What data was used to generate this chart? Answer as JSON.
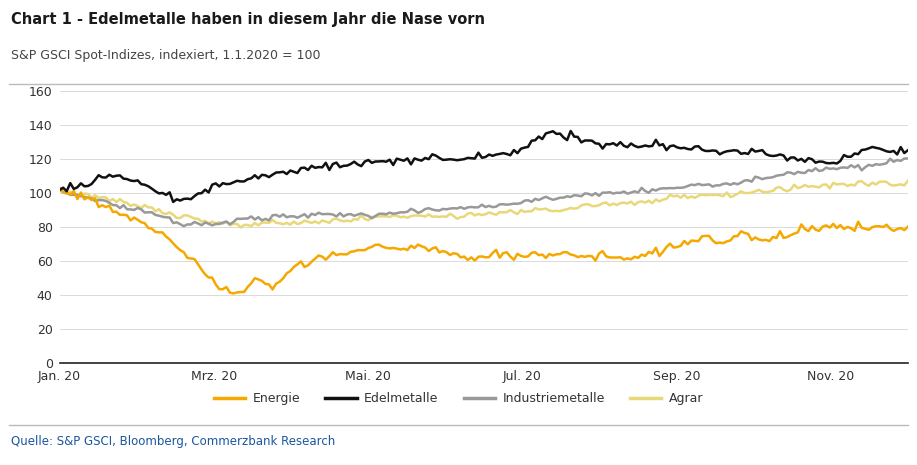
{
  "title": "Chart 1 - Edelmetalle haben in diesem Jahr die Nase vorn",
  "subtitle": "S&P GSCI Spot-Indizes, indexiert, 1.1.2020 = 100",
  "source": "Quelle: S&P GSCI, Bloomberg, Commerzbank Research",
  "title_color": "#1a1a1a",
  "subtitle_color": "#444444",
  "source_color": "#1a56a0",
  "ylim": [
    0,
    160
  ],
  "yticks": [
    0,
    20,
    40,
    60,
    80,
    100,
    120,
    140,
    160
  ],
  "xtick_labels": [
    "Jan. 20",
    "Mrz. 20",
    "Mai. 20",
    "Jul. 20",
    "Sep. 20",
    "Nov. 20"
  ],
  "legend_labels": [
    "Energie",
    "Edelmetalle",
    "Industriemetalle",
    "Agrar"
  ],
  "line_colors": {
    "Energie": "#f5a800",
    "Edelmetalle": "#111111",
    "Industriemetalle": "#999999",
    "Agrar": "#e8d878"
  },
  "background_color": "#ffffff",
  "grid_color": "#cccccc",
  "energie": [
    101,
    101,
    101,
    100,
    100,
    99,
    98,
    97,
    97,
    96,
    95,
    94,
    93,
    92,
    91,
    90,
    89,
    88,
    87,
    86,
    85,
    84,
    83,
    82,
    81,
    80,
    79,
    78,
    77,
    76,
    75,
    73,
    71,
    69,
    67,
    65,
    63,
    61,
    59,
    57,
    55,
    53,
    51,
    48,
    46,
    44,
    43,
    42,
    41,
    40,
    41,
    42,
    43,
    45,
    47,
    49,
    48,
    47,
    46,
    45,
    44,
    45,
    47,
    50,
    52,
    54,
    55,
    56,
    57,
    58,
    59,
    60,
    61,
    62,
    62,
    63,
    63,
    64,
    63,
    63,
    64,
    64,
    65,
    65,
    66,
    66,
    67,
    67,
    68,
    68,
    68,
    68,
    68,
    68,
    67,
    67,
    67,
    67,
    67,
    68,
    68,
    68,
    68,
    67,
    67,
    67,
    67,
    66,
    66,
    65,
    65,
    64,
    63,
    63,
    62,
    62,
    62,
    62,
    61,
    62,
    62,
    63,
    63,
    64,
    64,
    63,
    63,
    62,
    62,
    63,
    63,
    63,
    64,
    64,
    64,
    64,
    63,
    63,
    63,
    63,
    64,
    64,
    64,
    64,
    63,
    63,
    62,
    62,
    62,
    62,
    63,
    63,
    63,
    63,
    62,
    62,
    62,
    62,
    62,
    62,
    62,
    62,
    62,
    62,
    63,
    63,
    64,
    64,
    65,
    65,
    66,
    67,
    67,
    68,
    68,
    69,
    70,
    70,
    71,
    72,
    73,
    74,
    74,
    73,
    72,
    71,
    70,
    70,
    71,
    72,
    73,
    74,
    75,
    75,
    75,
    74,
    73,
    72,
    71,
    71,
    72,
    73,
    74,
    75,
    75,
    76,
    77,
    77,
    78,
    79,
    79,
    79,
    79,
    79,
    79,
    79,
    80,
    80,
    80,
    79,
    79,
    78,
    78,
    79,
    79,
    80,
    80,
    79,
    79,
    80,
    80,
    80,
    79,
    79,
    79,
    79,
    80,
    80,
    80,
    79
  ],
  "edelmetalle": [
    102,
    103,
    103,
    104,
    104,
    104,
    105,
    105,
    105,
    106,
    107,
    108,
    109,
    110,
    110,
    110,
    110,
    109,
    109,
    108,
    108,
    107,
    107,
    106,
    105,
    104,
    103,
    102,
    101,
    100,
    99,
    98,
    97,
    96,
    95,
    95,
    96,
    97,
    98,
    99,
    100,
    101,
    102,
    103,
    104,
    104,
    105,
    105,
    106,
    106,
    106,
    107,
    107,
    108,
    108,
    109,
    109,
    110,
    110,
    111,
    111,
    112,
    112,
    112,
    113,
    113,
    113,
    113,
    114,
    114,
    114,
    115,
    115,
    115,
    116,
    116,
    116,
    117,
    117,
    117,
    116,
    116,
    116,
    117,
    117,
    117,
    117,
    118,
    118,
    118,
    118,
    118,
    118,
    118,
    118,
    119,
    119,
    119,
    119,
    119,
    119,
    119,
    120,
    120,
    120,
    120,
    120,
    120,
    120,
    120,
    120,
    120,
    120,
    120,
    120,
    121,
    121,
    121,
    121,
    122,
    122,
    122,
    122,
    122,
    122,
    122,
    122,
    123,
    124,
    125,
    126,
    127,
    128,
    130,
    131,
    132,
    133,
    134,
    135,
    136,
    136,
    135,
    134,
    133,
    133,
    132,
    131,
    130,
    130,
    130,
    130,
    129,
    129,
    128,
    128,
    128,
    128,
    128,
    128,
    128,
    128,
    128,
    128,
    128,
    127,
    127,
    127,
    127,
    127,
    127,
    127,
    127,
    127,
    127,
    127,
    127,
    126,
    126,
    126,
    126,
    126,
    125,
    125,
    124,
    124,
    124,
    124,
    124,
    124,
    124,
    124,
    124,
    124,
    124,
    124,
    124,
    124,
    124,
    124,
    123,
    123,
    122,
    122,
    121,
    121,
    120,
    120,
    120,
    120,
    120,
    120,
    120,
    120,
    119,
    119,
    118,
    118,
    117,
    117,
    118,
    119,
    120,
    121,
    122,
    123,
    124,
    124,
    125,
    125,
    126,
    126,
    125,
    125,
    125,
    125,
    125,
    125,
    125,
    125,
    125
  ],
  "industriemetalle": [
    101,
    100,
    100,
    100,
    99,
    99,
    98,
    98,
    97,
    97,
    96,
    95,
    95,
    94,
    94,
    93,
    93,
    92,
    92,
    91,
    91,
    90,
    90,
    90,
    89,
    89,
    88,
    87,
    87,
    86,
    85,
    84,
    83,
    83,
    82,
    82,
    82,
    82,
    82,
    82,
    82,
    82,
    82,
    82,
    82,
    82,
    83,
    83,
    83,
    83,
    84,
    84,
    84,
    84,
    85,
    85,
    85,
    85,
    85,
    85,
    86,
    86,
    86,
    86,
    86,
    86,
    86,
    86,
    86,
    86,
    86,
    87,
    87,
    87,
    87,
    87,
    87,
    87,
    87,
    87,
    87,
    87,
    87,
    87,
    87,
    87,
    87,
    87,
    87,
    87,
    88,
    88,
    88,
    88,
    88,
    88,
    88,
    89,
    89,
    89,
    89,
    89,
    89,
    90,
    90,
    90,
    90,
    90,
    90,
    90,
    91,
    91,
    91,
    91,
    91,
    91,
    91,
    91,
    92,
    92,
    92,
    92,
    92,
    93,
    93,
    93,
    93,
    93,
    94,
    94,
    94,
    94,
    95,
    95,
    96,
    96,
    97,
    97,
    97,
    97,
    97,
    97,
    97,
    97,
    98,
    98,
    98,
    98,
    99,
    99,
    99,
    99,
    99,
    100,
    100,
    100,
    100,
    100,
    100,
    100,
    100,
    100,
    101,
    101,
    101,
    101,
    101,
    101,
    102,
    102,
    102,
    103,
    103,
    103,
    103,
    104,
    104,
    104,
    104,
    104,
    104,
    104,
    105,
    105,
    105,
    105,
    105,
    105,
    105,
    105,
    106,
    106,
    106,
    107,
    107,
    107,
    108,
    108,
    108,
    109,
    109,
    109,
    110,
    110,
    110,
    111,
    111,
    111,
    112,
    112,
    112,
    112,
    113,
    113,
    113,
    113,
    114,
    114,
    114,
    114,
    115,
    115,
    115,
    115,
    115,
    115,
    115,
    115,
    116,
    116,
    116,
    116,
    117,
    117,
    118,
    118,
    119,
    119,
    120,
    121
  ],
  "agrar": [
    101,
    100,
    100,
    100,
    100,
    100,
    99,
    99,
    99,
    98,
    98,
    97,
    97,
    97,
    96,
    96,
    95,
    95,
    94,
    94,
    93,
    93,
    92,
    92,
    91,
    91,
    90,
    90,
    89,
    89,
    88,
    88,
    87,
    87,
    86,
    86,
    85,
    85,
    85,
    84,
    84,
    83,
    83,
    83,
    82,
    82,
    82,
    82,
    81,
    81,
    81,
    81,
    81,
    81,
    81,
    82,
    82,
    82,
    82,
    82,
    82,
    82,
    82,
    82,
    82,
    82,
    82,
    82,
    82,
    82,
    82,
    82,
    82,
    82,
    83,
    83,
    83,
    84,
    84,
    84,
    84,
    84,
    85,
    85,
    85,
    85,
    85,
    85,
    85,
    86,
    86,
    86,
    86,
    86,
    86,
    86,
    86,
    86,
    86,
    86,
    86,
    86,
    86,
    86,
    86,
    86,
    86,
    86,
    86,
    86,
    86,
    86,
    86,
    86,
    87,
    87,
    87,
    87,
    87,
    87,
    87,
    87,
    88,
    88,
    88,
    88,
    88,
    89,
    89,
    89,
    89,
    89,
    90,
    90,
    90,
    90,
    90,
    90,
    90,
    90,
    90,
    90,
    90,
    91,
    91,
    91,
    91,
    92,
    92,
    92,
    92,
    92,
    93,
    93,
    93,
    93,
    93,
    93,
    94,
    94,
    94,
    94,
    94,
    95,
    95,
    95,
    95,
    95,
    96,
    96,
    96,
    96,
    97,
    97,
    97,
    97,
    97,
    97,
    98,
    98,
    98,
    98,
    99,
    99,
    99,
    99,
    99,
    99,
    99,
    99,
    99,
    99,
    100,
    100,
    100,
    100,
    101,
    101,
    101,
    101,
    101,
    101,
    102,
    102,
    102,
    102,
    103,
    103,
    103,
    103,
    103,
    104,
    104,
    104,
    104,
    104,
    104,
    104,
    105,
    105,
    105,
    105,
    105,
    105,
    105,
    105,
    105,
    105,
    105,
    105,
    105,
    105,
    105,
    105,
    105,
    105,
    105,
    105,
    105,
    106
  ]
}
